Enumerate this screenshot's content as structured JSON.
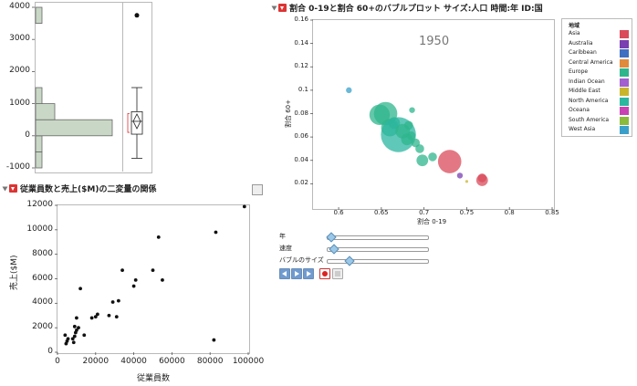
{
  "top_left": {
    "y_ticks": [
      "4000",
      "3000",
      "2000",
      "1000",
      "0",
      "-1000"
    ]
  },
  "scatter_panel": {
    "title": "従業員数と売上($M)の二変量の関係",
    "x_label": "従業員数",
    "y_label": "売上($M)",
    "x_ticks": [
      "0",
      "20000",
      "40000",
      "60000",
      "80000",
      "100000"
    ],
    "y_ticks": [
      "12000",
      "10000",
      "8000",
      "6000",
      "4000",
      "2000",
      "0"
    ]
  },
  "bubble_panel": {
    "title": "割合 0-19と割合 60+のバブルプロット サイズ:人口 時間:年 ID:国",
    "year": "1950",
    "x_label": "割合 0-19",
    "y_label": "割合 60+",
    "x_ticks": [
      "0.6",
      "0.65",
      "0.7",
      "0.75",
      "0.8",
      "0.85"
    ],
    "y_ticks": [
      "0.16",
      "0.14",
      "0.12",
      "0.1",
      "0.08",
      "0.06",
      "0.04",
      "0.02"
    ],
    "sliders": [
      "年",
      "速度",
      "バブルのサイズ"
    ]
  },
  "legend": {
    "title": "地域",
    "items": [
      {
        "label": "Asia",
        "color": "#d94b5b"
      },
      {
        "label": "Australia",
        "color": "#7a3fb0"
      },
      {
        "label": "Caribbean",
        "color": "#3f6fc0"
      },
      {
        "label": "Central America",
        "color": "#e08a3b"
      },
      {
        "label": "Europe",
        "color": "#2fb58c"
      },
      {
        "label": "Indian Ocean",
        "color": "#a25fd0"
      },
      {
        "label": "Middle East",
        "color": "#c9b52c"
      },
      {
        "label": "North America",
        "color": "#2bb6a0"
      },
      {
        "label": "Oceana",
        "color": "#c842b4"
      },
      {
        "label": "South America",
        "color": "#8bbb3a"
      },
      {
        "label": "West Asia",
        "color": "#3aa0c9"
      }
    ]
  },
  "chart_data": [
    {
      "type": "bar",
      "description_source": "horizontal histogram with box plot",
      "categories": [
        "-1000 to -500",
        "-500 to 0",
        "0 to 500",
        "500 to 1000",
        "1000 to 1500",
        "3500 to 4000"
      ],
      "values": [
        1,
        1,
        12,
        3,
        1,
        1
      ],
      "ylim": [
        -1000,
        4000
      ],
      "box": {
        "min": -700,
        "q1": 50,
        "median": 450,
        "q3": 750,
        "max": 1500,
        "outlier": 3750
      }
    },
    {
      "type": "scatter",
      "title": "従業員数と売上($M)の二変量の関係",
      "xlabel": "従業員数",
      "ylabel": "売上($M)",
      "xlim": [
        0,
        100000
      ],
      "ylim": [
        0,
        12000
      ],
      "points": [
        [
          4500,
          700
        ],
        [
          5000,
          900
        ],
        [
          4000,
          1400
        ],
        [
          5500,
          1100
        ],
        [
          8000,
          1100
        ],
        [
          8500,
          800
        ],
        [
          9000,
          1300
        ],
        [
          9500,
          1600
        ],
        [
          10000,
          1800
        ],
        [
          11000,
          2000
        ],
        [
          12000,
          5200
        ],
        [
          14000,
          1400
        ],
        [
          18000,
          2800
        ],
        [
          20000,
          2900
        ],
        [
          21000,
          3100
        ],
        [
          27000,
          3000
        ],
        [
          29000,
          4100
        ],
        [
          31000,
          2900
        ],
        [
          32000,
          4200
        ],
        [
          34000,
          6700
        ],
        [
          40000,
          5400
        ],
        [
          41000,
          5900
        ],
        [
          50000,
          6700
        ],
        [
          53000,
          9400
        ],
        [
          55000,
          5900
        ],
        [
          82000,
          1000
        ],
        [
          83000,
          9800
        ],
        [
          98000,
          11900
        ],
        [
          9000,
          2100
        ],
        [
          10000,
          2800
        ]
      ]
    },
    {
      "type": "scatter",
      "title": "割合 0-19と割合 60+のバブルプロット サイズ:人口 時間:年 ID:国",
      "xlabel": "割合 0-19",
      "ylabel": "割合 60+",
      "xlim": [
        0.57,
        0.85
      ],
      "ylim": [
        0.0,
        0.16
      ],
      "points": [
        {
          "x": 0.612,
          "y": 0.1,
          "size": 2,
          "region": "West Asia"
        },
        {
          "x": 0.648,
          "y": 0.079,
          "size": 7,
          "region": "Europe"
        },
        {
          "x": 0.655,
          "y": 0.08,
          "size": 8,
          "region": "Europe"
        },
        {
          "x": 0.66,
          "y": 0.068,
          "size": 6,
          "region": "Europe"
        },
        {
          "x": 0.665,
          "y": 0.072,
          "size": 4,
          "region": "Europe"
        },
        {
          "x": 0.67,
          "y": 0.062,
          "size": 12,
          "region": "North America"
        },
        {
          "x": 0.675,
          "y": 0.065,
          "size": 5,
          "region": "Europe"
        },
        {
          "x": 0.68,
          "y": 0.058,
          "size": 4,
          "region": "Europe"
        },
        {
          "x": 0.682,
          "y": 0.07,
          "size": 3,
          "region": "Europe"
        },
        {
          "x": 0.685,
          "y": 0.061,
          "size": 3,
          "region": "Europe"
        },
        {
          "x": 0.686,
          "y": 0.083,
          "size": 2,
          "region": "Europe"
        },
        {
          "x": 0.69,
          "y": 0.055,
          "size": 3,
          "region": "Europe"
        },
        {
          "x": 0.695,
          "y": 0.05,
          "size": 3,
          "region": "Europe"
        },
        {
          "x": 0.698,
          "y": 0.04,
          "size": 4,
          "region": "Europe"
        },
        {
          "x": 0.71,
          "y": 0.043,
          "size": 3,
          "region": "Europe"
        },
        {
          "x": 0.73,
          "y": 0.039,
          "size": 8,
          "region": "Asia"
        },
        {
          "x": 0.742,
          "y": 0.027,
          "size": 2,
          "region": "Australia"
        },
        {
          "x": 0.75,
          "y": 0.022,
          "size": 1,
          "region": "Middle East"
        },
        {
          "x": 0.768,
          "y": 0.023,
          "size": 4,
          "region": "Asia"
        },
        {
          "x": 0.768,
          "y": 0.025,
          "size": 3,
          "region": "Asia"
        }
      ]
    }
  ]
}
